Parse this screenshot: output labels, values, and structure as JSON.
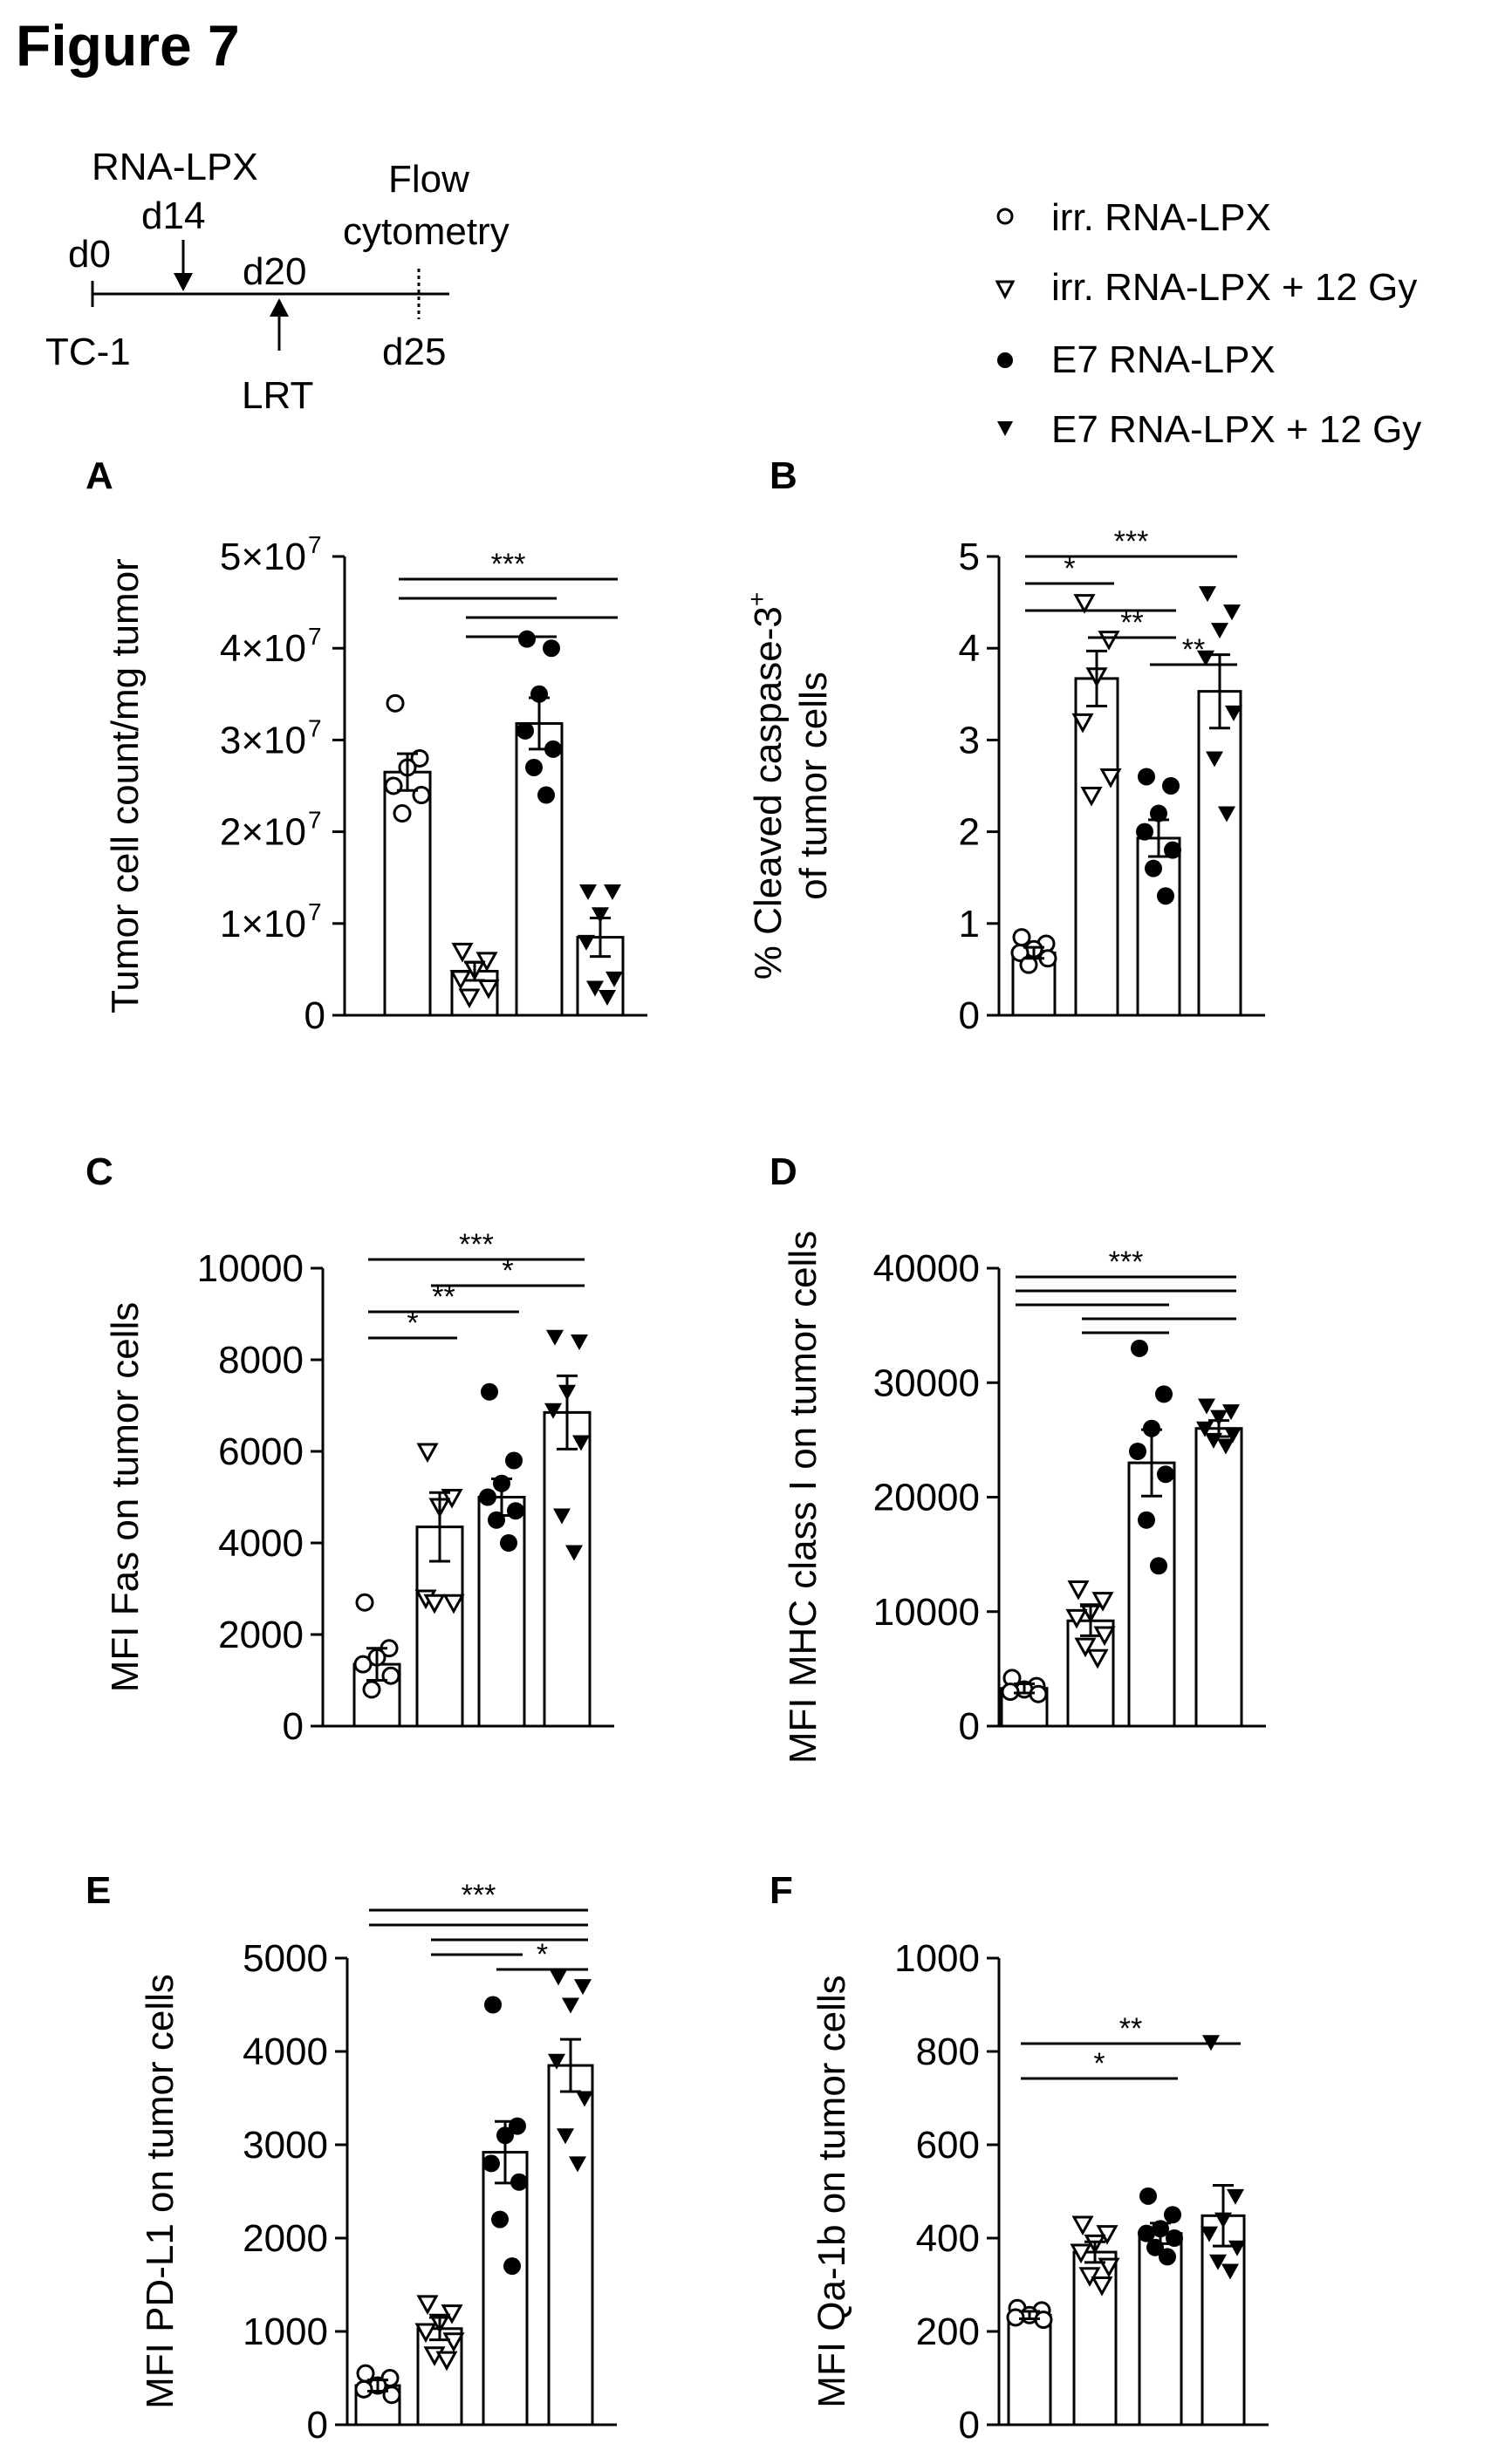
{
  "figure_title": "Figure 7",
  "timeline": {
    "treatment_label": "RNA-LPX",
    "treatment_day": "d14",
    "readout_label_1": "Flow",
    "readout_label_2": "cytometry",
    "start_day": "d0",
    "start_label": "TC-1",
    "lrt_day": "d20",
    "lrt_label": "LRT",
    "end_day": "d25"
  },
  "legend": [
    {
      "label": "irr. RNA-LPX",
      "marker": "open-circle"
    },
    {
      "label": "irr. RNA-LPX + 12 Gy",
      "marker": "open-triangle-down"
    },
    {
      "label": "E7 RNA-LPX",
      "marker": "filled-circle"
    },
    {
      "label": "E7 RNA-LPX + 12 Gy",
      "marker": "filled-triangle-down"
    }
  ],
  "chart_data": [
    {
      "panel": "A",
      "type": "bar",
      "ylabel": "Tumor cell count/mg tumor",
      "ylim": [
        0,
        50000000
      ],
      "ticks": [
        0,
        10000000,
        20000000,
        30000000,
        40000000,
        50000000
      ],
      "tick_labels": [
        "0",
        "1×10",
        "2×10",
        "3×10",
        "4×10",
        "5×10"
      ],
      "tick_exp": "7",
      "groups": [
        "irr. RNA-LPX",
        "irr. RNA-LPX + 12 Gy",
        "E7 RNA-LPX",
        "E7 RNA-LPX + 12 Gy"
      ],
      "means": [
        26500000,
        4800000,
        31800000,
        8500000
      ],
      "sem": [
        2000000,
        1000000,
        2800000,
        2100000
      ],
      "points": [
        [
          34000000,
          28000000,
          27000000,
          25000000,
          24000000,
          22000000
        ],
        [
          7000000,
          6000000,
          5000000,
          4000000,
          3000000,
          2000000
        ],
        [
          41000000,
          40000000,
          35000000,
          31000000,
          29000000,
          27000000,
          24000000
        ],
        [
          13500000,
          13500000,
          11000000,
          8000000,
          4000000,
          3000000,
          2000000
        ]
      ],
      "sig_lines": [
        {
          "from": 0,
          "to": 3,
          "label": "***"
        },
        {
          "from": 0,
          "to": 2,
          "label": ""
        },
        {
          "from": 1,
          "to": 3,
          "label": ""
        },
        {
          "from": 1,
          "to": 2,
          "label": ""
        }
      ]
    },
    {
      "panel": "B",
      "type": "bar",
      "ylabel": "% Cleaved caspase-3⁺ of tumor cells",
      "ylabel_line1": "% Cleaved caspase-3",
      "ylabel_sup": "+",
      "ylabel_line2": "of tumor cells",
      "ylim": [
        0,
        5
      ],
      "ticks": [
        0,
        1,
        2,
        3,
        4,
        5
      ],
      "tick_labels": [
        "0",
        "1",
        "2",
        "3",
        "4",
        "5"
      ],
      "groups": [
        "irr. RNA-LPX",
        "irr. RNA-LPX + 12 Gy",
        "E7 RNA-LPX",
        "E7 RNA-LPX + 12 Gy"
      ],
      "means": [
        0.68,
        3.67,
        1.93,
        3.53
      ],
      "sem": [
        0.06,
        0.3,
        0.2,
        0.4
      ],
      "points": [
        [
          0.85,
          0.78,
          0.72,
          0.68,
          0.62,
          0.55
        ],
        [
          4.5,
          4.1,
          3.7,
          3.2,
          2.6,
          2.4
        ],
        [
          2.6,
          2.5,
          2.2,
          2.0,
          1.8,
          1.6,
          1.3
        ],
        [
          4.6,
          4.4,
          4.2,
          3.9,
          3.3,
          2.8,
          2.2
        ]
      ],
      "sig_lines": [
        {
          "from": 0,
          "to": 3,
          "label": "***"
        },
        {
          "from": 0,
          "to": 1,
          "label": "*"
        },
        {
          "from": 0,
          "to": 2,
          "label": ""
        },
        {
          "from": 1,
          "to": 2,
          "label": "**"
        },
        {
          "from": 2,
          "to": 3,
          "label": "**"
        }
      ]
    },
    {
      "panel": "C",
      "type": "bar",
      "ylabel": "MFI Fas on tumor cells",
      "ylim": [
        0,
        10000
      ],
      "ticks": [
        0,
        2000,
        4000,
        6000,
        8000,
        10000
      ],
      "tick_labels": [
        "0",
        "2000",
        "4000",
        "6000",
        "8000",
        "10000"
      ],
      "groups": [
        "irr. RNA-LPX",
        "irr. RNA-LPX + 12 Gy",
        "E7 RNA-LPX",
        "E7 RNA-LPX + 12 Gy"
      ],
      "means": [
        1350,
        4350,
        5000,
        6850
      ],
      "sem": [
        350,
        750,
        400,
        800
      ],
      "points": [
        [
          2700,
          1700,
          1500,
          1350,
          1100,
          800
        ],
        [
          6000,
          5000,
          4800,
          2800,
          2700,
          2700
        ],
        [
          7300,
          5800,
          5300,
          5000,
          4700,
          4500,
          4000
        ],
        [
          8500,
          8400,
          7300,
          6900,
          6200,
          4600,
          3800
        ]
      ],
      "sig_lines": [
        {
          "from": 0,
          "to": 3,
          "label": "***"
        },
        {
          "from": 1,
          "to": 3,
          "label": "*"
        },
        {
          "from": 0,
          "to": 2,
          "label": "**"
        },
        {
          "from": 0,
          "to": 1,
          "label": "*"
        }
      ]
    },
    {
      "panel": "D",
      "type": "bar",
      "ylabel": "MFI MHC class I on tumor cells",
      "ylim": [
        0,
        40000
      ],
      "ticks": [
        0,
        10000,
        20000,
        30000,
        40000
      ],
      "tick_labels": [
        "0",
        "10000",
        "20000",
        "30000",
        "40000"
      ],
      "groups": [
        "irr. RNA-LPX",
        "irr. RNA-LPX + 12 Gy",
        "E7 RNA-LPX",
        "E7 RNA-LPX + 12 Gy"
      ],
      "means": [
        3300,
        9200,
        23000,
        26000
      ],
      "sem": [
        400,
        1300,
        2900,
        700
      ],
      "points": [
        [
          4200,
          3500,
          3200,
          3000,
          2800
        ],
        [
          12000,
          11000,
          10000,
          9500,
          8000,
          7000,
          6000
        ],
        [
          33000,
          29000,
          26000,
          24000,
          22000,
          18000,
          14000
        ],
        [
          28000,
          27500,
          27000,
          26000,
          25500,
          25000,
          24500
        ]
      ],
      "sig_lines": [
        {
          "from": 0,
          "to": 3,
          "label": "***"
        },
        {
          "from": 0,
          "to": 3,
          "label": ""
        },
        {
          "from": 0,
          "to": 2,
          "label": ""
        },
        {
          "from": 1,
          "to": 3,
          "label": ""
        },
        {
          "from": 1,
          "to": 2,
          "label": ""
        }
      ]
    },
    {
      "panel": "E",
      "type": "bar",
      "ylabel": "MFI PD-L1 on tumor cells",
      "ylim": [
        0,
        5000
      ],
      "ticks": [
        0,
        1000,
        2000,
        3000,
        4000,
        5000
      ],
      "tick_labels": [
        "0",
        "1000",
        "2000",
        "3000",
        "4000",
        "5000"
      ],
      "groups": [
        "irr. RNA-LPX",
        "irr. RNA-LPX + 12 Gy",
        "E7 RNA-LPX",
        "E7 RNA-LPX + 12 Gy"
      ],
      "means": [
        420,
        1030,
        2920,
        3850
      ],
      "sem": [
        60,
        120,
        330,
        280
      ],
      "points": [
        [
          550,
          500,
          420,
          380,
          320
        ],
        [
          1300,
          1200,
          1100,
          1000,
          900,
          750,
          700
        ],
        [
          4500,
          3200,
          3100,
          2800,
          2600,
          2200,
          1700
        ],
        [
          4800,
          4700,
          4500,
          3900,
          3500,
          3100,
          2800
        ]
      ],
      "sig_lines": [
        {
          "from": 0,
          "to": 3,
          "label": "***"
        },
        {
          "from": 0,
          "to": 3,
          "label": ""
        },
        {
          "from": 1,
          "to": 3,
          "label": ""
        },
        {
          "from": 1,
          "to": 2,
          "label": ""
        },
        {
          "from": 2,
          "to": 3,
          "label": "*"
        }
      ]
    },
    {
      "panel": "F",
      "type": "bar",
      "ylabel": "MFI Qa-1b on tumor cells",
      "ylim": [
        0,
        1000
      ],
      "ticks": [
        0,
        200,
        400,
        600,
        800,
        1000
      ],
      "tick_labels": [
        "0",
        "200",
        "400",
        "600",
        "800",
        "1000"
      ],
      "groups": [
        "irr. RNA-LPX",
        "irr. RNA-LPX + 12 Gy",
        "E7 RNA-LPX",
        "E7 RNA-LPX + 12 Gy"
      ],
      "means": [
        235,
        370,
        410,
        448
      ],
      "sem": [
        8,
        22,
        22,
        65
      ],
      "points": [
        [
          250,
          245,
          235,
          230,
          225
        ],
        [
          430,
          410,
          390,
          370,
          340,
          320,
          300
        ],
        [
          490,
          450,
          420,
          410,
          400,
          380,
          360
        ],
        [
          820,
          490,
          440,
          410,
          380,
          350,
          330
        ]
      ],
      "sig_lines": [
        {
          "from": 0,
          "to": 3,
          "label": "**"
        },
        {
          "from": 0,
          "to": 2,
          "label": "*"
        }
      ]
    }
  ]
}
